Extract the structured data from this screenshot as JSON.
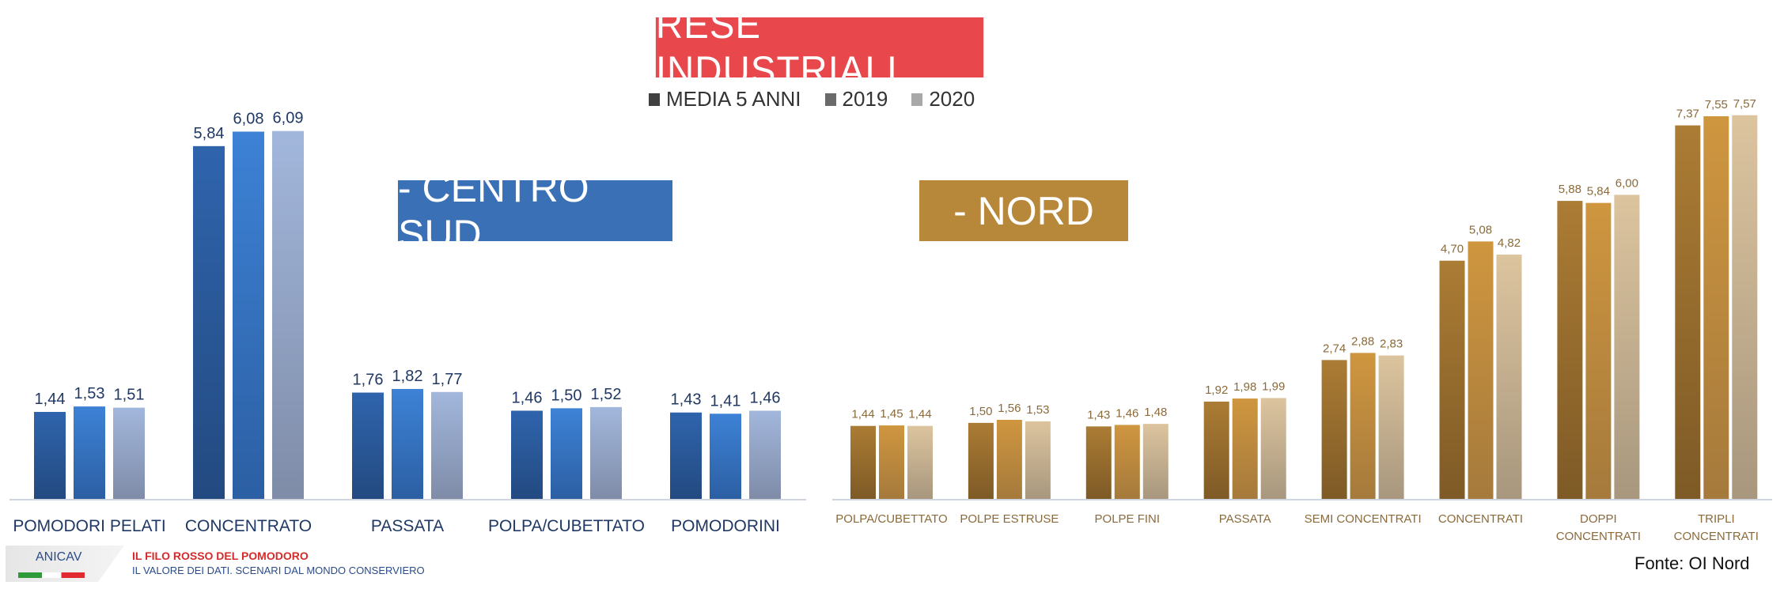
{
  "title": "RESE INDUSTRIALI",
  "legend": [
    {
      "label": "MEDIA 5 ANNI",
      "color": "#404040"
    },
    {
      "label": "2019",
      "color": "#6a6a6a"
    },
    {
      "label": "2020",
      "color": "#a8a8a8"
    }
  ],
  "source": "Fonte: OI Nord",
  "footer": {
    "logo": "ANICAV",
    "line1": "IL FILO ROSSO DEL POMODORO",
    "line2": "IL VALORE DEI DATI. SCENARI DAL MONDO CONSERVIERO"
  },
  "chart_data": [
    {
      "type": "bar",
      "title": "- CENTRO SUD",
      "categories": [
        "POMODORI PELATI",
        "CONCENTRATO",
        "PASSATA",
        "POLPA/CUBETTATO",
        "POMODORINI"
      ],
      "series": [
        {
          "name": "MEDIA 5 ANNI",
          "values": [
            1.44,
            5.84,
            1.76,
            1.46,
            1.43
          ],
          "labels": [
            "1,44",
            "5,84",
            "1,76",
            "1,46",
            "1,43"
          ]
        },
        {
          "name": "2019",
          "values": [
            1.53,
            6.08,
            1.82,
            1.5,
            1.41
          ],
          "labels": [
            "1,53",
            "6,08",
            "1,82",
            "1,50",
            "1,41"
          ]
        },
        {
          "name": "2020",
          "values": [
            1.51,
            6.09,
            1.77,
            1.52,
            1.46
          ],
          "labels": [
            "1,51",
            "6,09",
            "1,77",
            "1,52",
            "1,46"
          ]
        }
      ],
      "ylim": [
        0,
        6.5
      ]
    },
    {
      "type": "bar",
      "title": "- NORD",
      "categories": [
        "POLPA/CUBETTATO",
        "POLPE ESTRUSE",
        "POLPE FINI",
        "PASSATA",
        "SEMI CONCENTRATI",
        "CONCENTRATI",
        "DOPPI CONCENTRATI",
        "TRIPLI CONCENTRATI"
      ],
      "series": [
        {
          "name": "MEDIA 5 ANNI",
          "values": [
            1.44,
            1.5,
            1.43,
            1.92,
            2.74,
            4.7,
            5.88,
            7.37
          ],
          "labels": [
            "1,44",
            "1,50",
            "1,43",
            "1,92",
            "2,74",
            "4,70",
            "5,88",
            "7,37"
          ]
        },
        {
          "name": "2019",
          "values": [
            1.45,
            1.56,
            1.46,
            1.98,
            2.88,
            5.08,
            5.84,
            7.55
          ],
          "labels": [
            "1,45",
            "1,56",
            "1,46",
            "1,98",
            "2,88",
            "5,08",
            "5,84",
            "7,55"
          ]
        },
        {
          "name": "2020",
          "values": [
            1.44,
            1.53,
            1.48,
            1.99,
            2.83,
            4.82,
            6.0,
            7.57
          ],
          "labels": [
            "1,44",
            "1,53",
            "1,48",
            "1,99",
            "2,83",
            "4,82",
            "6,00",
            "7,57"
          ]
        }
      ],
      "ylim": [
        0,
        8
      ]
    }
  ]
}
